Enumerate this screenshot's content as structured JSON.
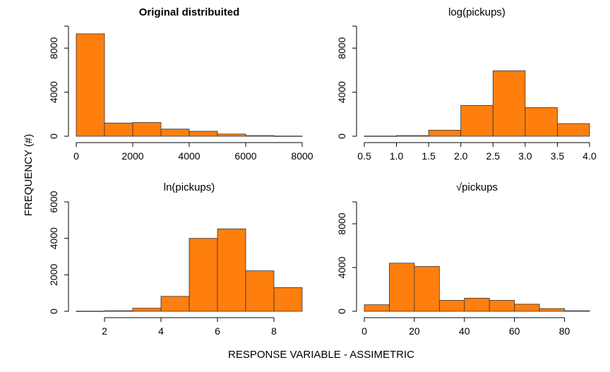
{
  "figure": {
    "ylabel": "FREQUENCY (#)",
    "xlabel": "RESPONSE VARIABLE - ASSIMETRIC",
    "bar_color": "#ff7f0e",
    "bar_stroke": "#333333"
  },
  "chart_data": [
    {
      "type": "bar",
      "title": "Original distribuited",
      "title_bold": true,
      "bin_edges": [
        0,
        1000,
        2000,
        3000,
        4000,
        5000,
        6000,
        7000,
        8000
      ],
      "values": [
        9300,
        1200,
        1250,
        650,
        450,
        200,
        60,
        20
      ],
      "xlim": [
        0,
        8000
      ],
      "ylim": [
        0,
        10000
      ],
      "xticks": [
        0,
        2000,
        4000,
        6000,
        8000
      ],
      "yticks": [
        0,
        4000,
        8000
      ]
    },
    {
      "type": "bar",
      "title": "log(pickups)",
      "title_bold": false,
      "bin_edges": [
        0.5,
        1.0,
        1.5,
        2.0,
        2.5,
        3.0,
        3.5,
        4.0
      ],
      "values": [
        20,
        60,
        550,
        2800,
        5950,
        2600,
        1150
      ],
      "xlim": [
        0.5,
        4.0
      ],
      "ylim": [
        0,
        10000
      ],
      "xticks": [
        "0.5",
        "1.0",
        "1.5",
        "2.0",
        "2.5",
        "3.0",
        "3.5",
        "4.0"
      ],
      "yticks": [
        0,
        4000,
        8000
      ]
    },
    {
      "type": "bar",
      "title": "ln(pickups)",
      "title_bold": false,
      "bin_edges": [
        1,
        2,
        3,
        4,
        5,
        6,
        7,
        8,
        9
      ],
      "values": [
        10,
        30,
        170,
        820,
        4000,
        4520,
        2220,
        1300
      ],
      "xlim": [
        1,
        9
      ],
      "ylim": [
        0,
        6000
      ],
      "xticks": [
        2,
        4,
        6,
        8
      ],
      "yticks": [
        0,
        2000,
        4000,
        6000
      ]
    },
    {
      "type": "bar",
      "title": "√pickups",
      "title_bold": false,
      "bin_edges": [
        0,
        10,
        20,
        30,
        40,
        50,
        60,
        70,
        80,
        90
      ],
      "values": [
        600,
        4400,
        4100,
        1000,
        1200,
        1000,
        650,
        250,
        50
      ],
      "xlim": [
        0,
        90
      ],
      "ylim": [
        0,
        10000
      ],
      "xticks": [
        0,
        20,
        40,
        60,
        80
      ],
      "yticks": [
        0,
        4000,
        8000
      ]
    }
  ]
}
